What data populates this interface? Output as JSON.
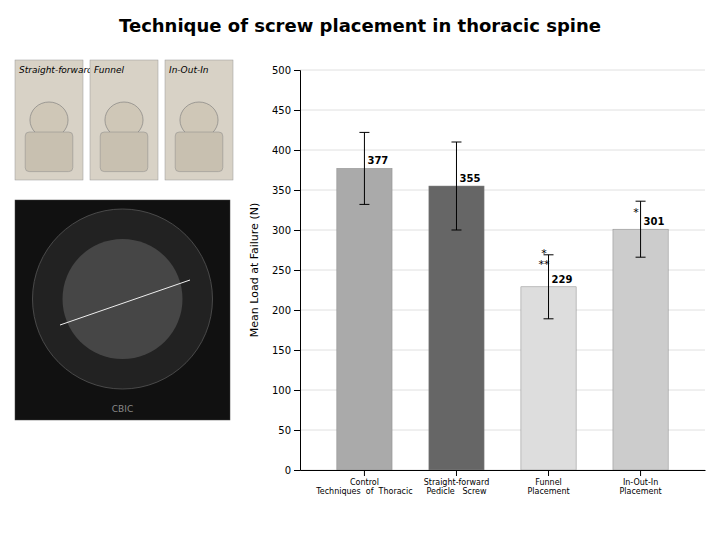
{
  "chart_data": {
    "type": "bar",
    "title": "Technique of screw placement in thoracic spine",
    "categories": [
      "Control\nTechniques  of  Thoracic",
      "Straight-forward\nPedicle   Screw",
      "Funnel\nPlacement",
      "In-Out-In\nPlacement"
    ],
    "values": [
      377,
      355,
      229,
      301
    ],
    "errors": [
      45,
      55,
      40,
      35
    ],
    "colors": [
      "#aaaaaa",
      "#666666",
      "#dddddd",
      "#cccccc"
    ],
    "y_label": "Mean Load at Failure (N)",
    "ylim": [
      0,
      500
    ],
    "yticks": [
      0,
      50,
      100,
      150,
      200,
      250,
      300,
      350,
      400,
      450,
      500
    ],
    "grid": true,
    "data_labels": true,
    "annotations": [
      {
        "text": "*\n**",
        "x": 1.95,
        "y": 252
      },
      {
        "text": "*",
        "x": 2.95,
        "y": 318
      },
      {
        "text": "Straight-forward"
      },
      {
        "text": "Funnel"
      },
      {
        "text": "In-Out-In"
      },
      {
        "text": "CBIC"
      }
    ]
  }
}
